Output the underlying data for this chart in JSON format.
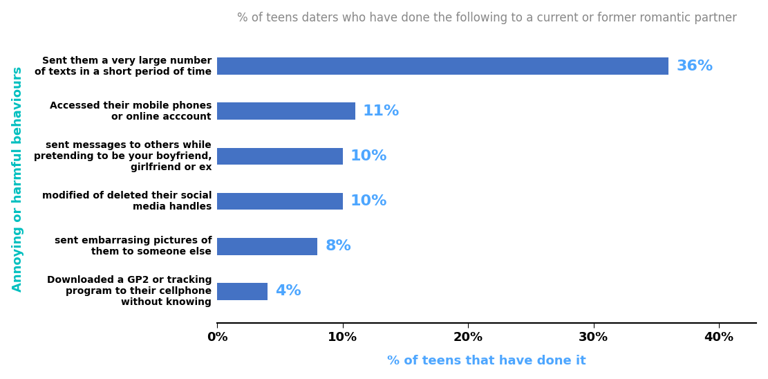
{
  "title": "% of teens daters who have done the following to a current or former romantic partner",
  "categories": [
    "Downloaded a GP2 or tracking\nprogram to their cellphone\nwithout knowing",
    "sent embarrasing pictures of\nthem to someone else",
    "modified of deleted their social\nmedia handles",
    "sent messages to others while\npretending to be your boyfriend,\ngirlfriend or ex",
    "Accessed their mobile phones\nor online acccount",
    "Sent them a very large number\nof texts in a short period of time"
  ],
  "values": [
    4,
    8,
    10,
    10,
    11,
    36
  ],
  "bar_color": "#4472C4",
  "label_color": "#4da6ff",
  "title_color": "#888888",
  "ylabel_text": "Annoying or harmful behaviours",
  "ylabel_color": "#00BFBF",
  "xlabel_text": "% of teens that have done it",
  "xlabel_color": "#4da6ff",
  "xlim": [
    0,
    43
  ],
  "xticks": [
    0,
    10,
    20,
    30,
    40
  ],
  "xtick_labels": [
    "0%",
    "10%",
    "20%",
    "30%",
    "40%"
  ],
  "label_fontsize": 16,
  "title_fontsize": 12,
  "category_fontsize": 10,
  "ylabel_fontsize": 13,
  "xlabel_fontsize": 13,
  "xtick_fontsize": 13,
  "value_labels": [
    "4%",
    "8%",
    "10%",
    "10%",
    "11%",
    "36%"
  ],
  "background_color": "#ffffff",
  "bar_height": 0.38
}
